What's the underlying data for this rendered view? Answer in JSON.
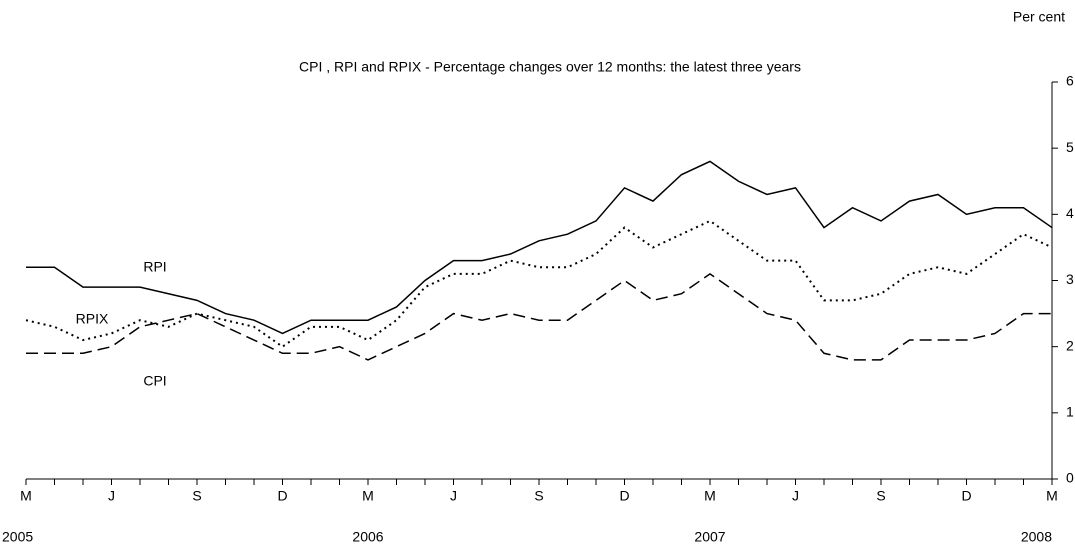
{
  "chart_data": {
    "type": "line",
    "title": "CPI , RPI and RPIX - Percentage changes over 12 months: the latest three years",
    "y_axis_label": "Per cent",
    "categories": [
      "M",
      null,
      null,
      "J",
      null,
      null,
      "S",
      null,
      null,
      "D",
      null,
      null,
      "M",
      null,
      null,
      "J",
      null,
      null,
      "S",
      null,
      null,
      "D",
      null,
      null,
      "M",
      null,
      null,
      "J",
      null,
      null,
      "S",
      null,
      null,
      "D",
      null,
      null,
      "M"
    ],
    "year_labels": [
      "2005",
      null,
      null,
      null,
      null,
      null,
      null,
      null,
      null,
      null,
      null,
      null,
      "2006",
      null,
      null,
      null,
      null,
      null,
      null,
      null,
      null,
      null,
      null,
      null,
      "2007",
      null,
      null,
      null,
      null,
      null,
      null,
      null,
      null,
      null,
      null,
      null,
      "2008"
    ],
    "series": [
      {
        "name": "RPI",
        "color": "#000000",
        "style": "solid",
        "values": [
          3.2,
          3.2,
          2.9,
          2.9,
          2.9,
          2.8,
          2.7,
          2.5,
          2.4,
          2.2,
          2.4,
          2.4,
          2.4,
          2.6,
          3.0,
          3.3,
          3.3,
          3.4,
          3.6,
          3.7,
          3.9,
          4.4,
          4.2,
          4.6,
          4.8,
          4.5,
          4.3,
          4.4,
          3.8,
          4.1,
          3.9,
          4.2,
          4.3,
          4.0,
          4.1,
          4.1,
          3.8
        ]
      },
      {
        "name": "RPIX",
        "color": "#000000",
        "style": "dotted",
        "values": [
          2.4,
          2.3,
          2.1,
          2.2,
          2.4,
          2.3,
          2.5,
          2.4,
          2.3,
          2.0,
          2.3,
          2.3,
          2.1,
          2.4,
          2.9,
          3.1,
          3.1,
          3.3,
          3.2,
          3.2,
          3.4,
          3.8,
          3.5,
          3.7,
          3.9,
          3.6,
          3.3,
          3.3,
          2.7,
          2.7,
          2.8,
          3.1,
          3.2,
          3.1,
          3.4,
          3.7,
          3.5
        ]
      },
      {
        "name": "CPI",
        "color": "#000000",
        "style": "dashed",
        "values": [
          1.9,
          1.9,
          1.9,
          2.0,
          2.3,
          2.4,
          2.5,
          2.3,
          2.1,
          1.9,
          1.9,
          2.0,
          1.8,
          2.0,
          2.2,
          2.5,
          2.4,
          2.5,
          2.4,
          2.4,
          2.7,
          3.0,
          2.7,
          2.8,
          3.1,
          2.8,
          2.5,
          2.4,
          1.9,
          1.8,
          1.8,
          2.1,
          2.1,
          2.1,
          2.2,
          2.5,
          2.5
        ]
      }
    ],
    "ylim": [
      0,
      6
    ],
    "yticks": [
      0,
      1,
      2,
      3,
      4,
      5,
      6
    ],
    "y_axis_side": "right",
    "grid": false
  }
}
